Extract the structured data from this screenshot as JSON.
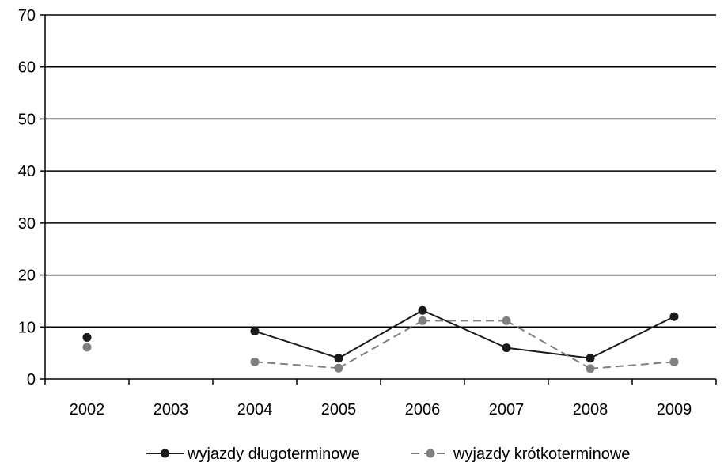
{
  "chart_data": {
    "type": "line",
    "title": "",
    "xlabel": "",
    "ylabel": "",
    "categories": [
      "2002",
      "2003",
      "2004",
      "2005",
      "2006",
      "2007",
      "2008",
      "2009"
    ],
    "ylim": [
      0,
      70
    ],
    "yticks": [
      0,
      10,
      20,
      30,
      40,
      50,
      60,
      70
    ],
    "grid": true,
    "legend": "bottom",
    "series": [
      {
        "name": "wyjazdy długoterminowe",
        "values": [
          8,
          null,
          9.2,
          4,
          13.2,
          6,
          4,
          12
        ],
        "color": "#1a1a1a",
        "dash": "solid"
      },
      {
        "name": "wyjazdy krótkoterminowe",
        "values": [
          6.1,
          null,
          3.3,
          2.1,
          11.2,
          11.2,
          2,
          3.3
        ],
        "color": "#808080",
        "dash": "dashed"
      }
    ]
  }
}
